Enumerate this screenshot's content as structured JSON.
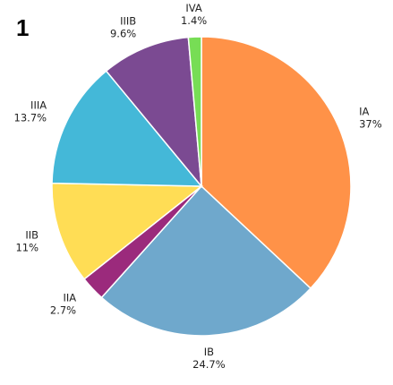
{
  "panel_label": "1",
  "chart_data": {
    "type": "pie",
    "start": "top",
    "direction": "clockwise",
    "slices": [
      {
        "label": "IA",
        "percent_text": "37%",
        "value": 37.0,
        "color": "#FF9248"
      },
      {
        "label": "IB",
        "percent_text": "24.7%",
        "value": 24.7,
        "color": "#6FA8CC"
      },
      {
        "label": "IIA",
        "percent_text": "2.7%",
        "value": 2.7,
        "color": "#9B2A7C"
      },
      {
        "label": "IIB",
        "percent_text": "11%",
        "value": 11.0,
        "color": "#FFDD55"
      },
      {
        "label": "IIIA",
        "percent_text": "13.7%",
        "value": 13.7,
        "color": "#44B8D8"
      },
      {
        "label": "IIIB",
        "percent_text": "9.6%",
        "value": 9.6,
        "color": "#7B4A92"
      },
      {
        "label": "IVA",
        "percent_text": "1.4%",
        "value": 1.4,
        "color": "#77DD55"
      }
    ]
  }
}
